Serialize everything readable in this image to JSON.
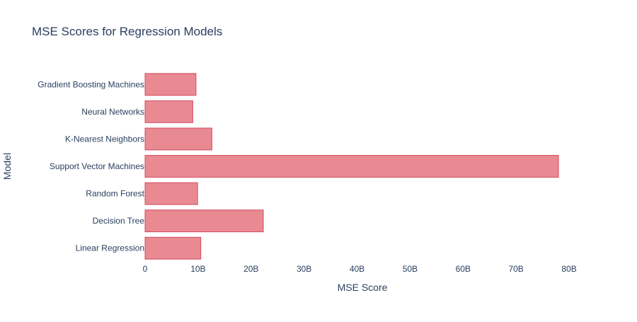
{
  "chart_data": {
    "type": "bar",
    "orientation": "horizontal",
    "title": "MSE Scores for Regression Models",
    "xlabel": "MSE Score",
    "ylabel": "Model",
    "categories": [
      "Linear Regression",
      "Decision Tree",
      "Random Forest",
      "Support Vector Machines",
      "K-Nearest Neighbors",
      "Neural Networks",
      "Gradient Boosting Machines"
    ],
    "values": [
      10500000000.0,
      22300000000.0,
      9900000000.0,
      78000000000.0,
      12600000000.0,
      9000000000.0,
      9600000000.0
    ],
    "xlim": [
      0,
      82000000000.0
    ],
    "xticks": [
      0,
      10000000000.0,
      20000000000.0,
      30000000000.0,
      40000000000.0,
      50000000000.0,
      60000000000.0,
      70000000000.0,
      80000000000.0
    ],
    "xtick_labels": [
      "0",
      "10B",
      "20B",
      "30B",
      "40B",
      "50B",
      "60B",
      "70B",
      "80B"
    ],
    "grid": false,
    "bar_color": "#e98a93",
    "bar_edge_color": "#d04a5a",
    "text_color": "#2a3f5f"
  }
}
